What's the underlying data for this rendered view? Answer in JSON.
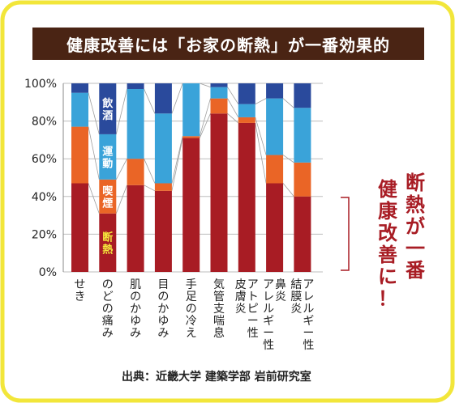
{
  "title": "健康改善には「お家の断熱」が一番効果的",
  "source": "出典：近畿大学 建築学部 岩前研究室",
  "conclusion": [
    "断熱が一番",
    "健康改善に！"
  ],
  "colors": {
    "border": "#f2e63a",
    "title_bg": "#4a2414",
    "insulation": "#a81c24",
    "smoking": "#ea6526",
    "exercise": "#3aa3d9",
    "drinking": "#2a4a9c",
    "accent_text": "#a81c24",
    "label_yellow": "#f5e93c"
  },
  "chart_data": {
    "type": "bar",
    "stacked": true,
    "categories": [
      "せき",
      "のどの痛み",
      "肌のかゆみ",
      "目のかゆみ",
      "手足の冷え",
      "気管支喘息",
      "アトピー性皮膚炎",
      "鼻炎アレルギー性",
      "アレルギー性結膜炎"
    ],
    "category_columns": [
      [
        "せき"
      ],
      [
        "のどの痛み"
      ],
      [
        "肌のかゆみ"
      ],
      [
        "目のかゆみ"
      ],
      [
        "手足の冷え"
      ],
      [
        "気管支喘息"
      ],
      [
        "アトピー性",
        "皮膚炎"
      ],
      [
        "鼻炎",
        "アレルギー性"
      ],
      [
        "アレルギー性",
        "結膜炎"
      ]
    ],
    "series": [
      {
        "name": "断熱",
        "values": [
          47,
          31,
          46,
          43,
          71,
          84,
          79,
          47,
          40
        ]
      },
      {
        "name": "喫煙",
        "values": [
          30,
          18,
          14,
          4,
          1,
          8,
          3,
          15,
          18
        ]
      },
      {
        "name": "運動",
        "values": [
          18,
          24,
          37,
          37,
          28,
          6,
          7,
          30,
          29
        ]
      },
      {
        "name": "飲酒",
        "values": [
          5,
          27,
          3,
          16,
          0,
          2,
          11,
          8,
          13
        ]
      }
    ],
    "yticks": [
      "0%",
      "20%",
      "40%",
      "60%",
      "80%",
      "100%"
    ],
    "ylim": [
      0,
      100
    ],
    "grid": true,
    "legend": "labels inside the second bar"
  }
}
